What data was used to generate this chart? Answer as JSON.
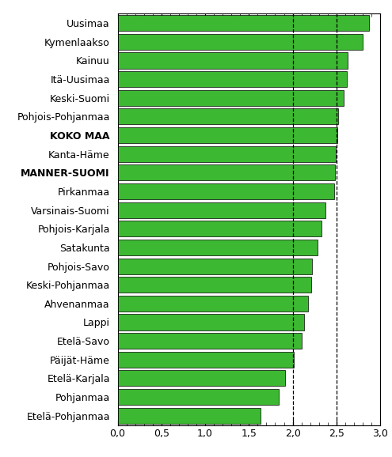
{
  "categories": [
    "Etelä-Pohjanmaa",
    "Pohjanmaa",
    "Etelä-Karjala",
    "Päijät-Häme",
    "Etelä-Savo",
    "Lappi",
    "Ahvenanmaa",
    "Keski-Pohjanmaa",
    "Pohjois-Savo",
    "Satakunta",
    "Pohjois-Karjala",
    "Varsinais-Suomi",
    "Pirkanmaa",
    "MANNER-SUOMI",
    "Kanta-Häme",
    "KOKO MAA",
    "Pohjois-Pohjanmaa",
    "Keski-Suomi",
    "Itä-Uusimaa",
    "Kainuu",
    "Kymenlaakso",
    "Uusimaa"
  ],
  "values": [
    1.63,
    1.84,
    1.91,
    2.01,
    2.1,
    2.13,
    2.18,
    2.21,
    2.22,
    2.28,
    2.33,
    2.37,
    2.47,
    2.48,
    2.49,
    2.51,
    2.52,
    2.58,
    2.62,
    2.63,
    2.8,
    2.87
  ],
  "bar_color": "#3cb832",
  "bar_edgecolor": "#000000",
  "background_color": "#ffffff",
  "xlim": [
    0,
    3.0
  ],
  "xticks": [
    0.0,
    0.5,
    1.0,
    1.5,
    2.0,
    2.5,
    3.0
  ],
  "xtick_labels": [
    "0,0",
    "0,5",
    "1,0",
    "1,5",
    "2,0",
    "2,5",
    "3,0"
  ],
  "vline1": 2.0,
  "vline2": 2.5,
  "bold_categories": [
    "KOKO MAA",
    "MANNER-SUOMI"
  ],
  "tick_fontsize": 9,
  "label_fontsize": 9
}
